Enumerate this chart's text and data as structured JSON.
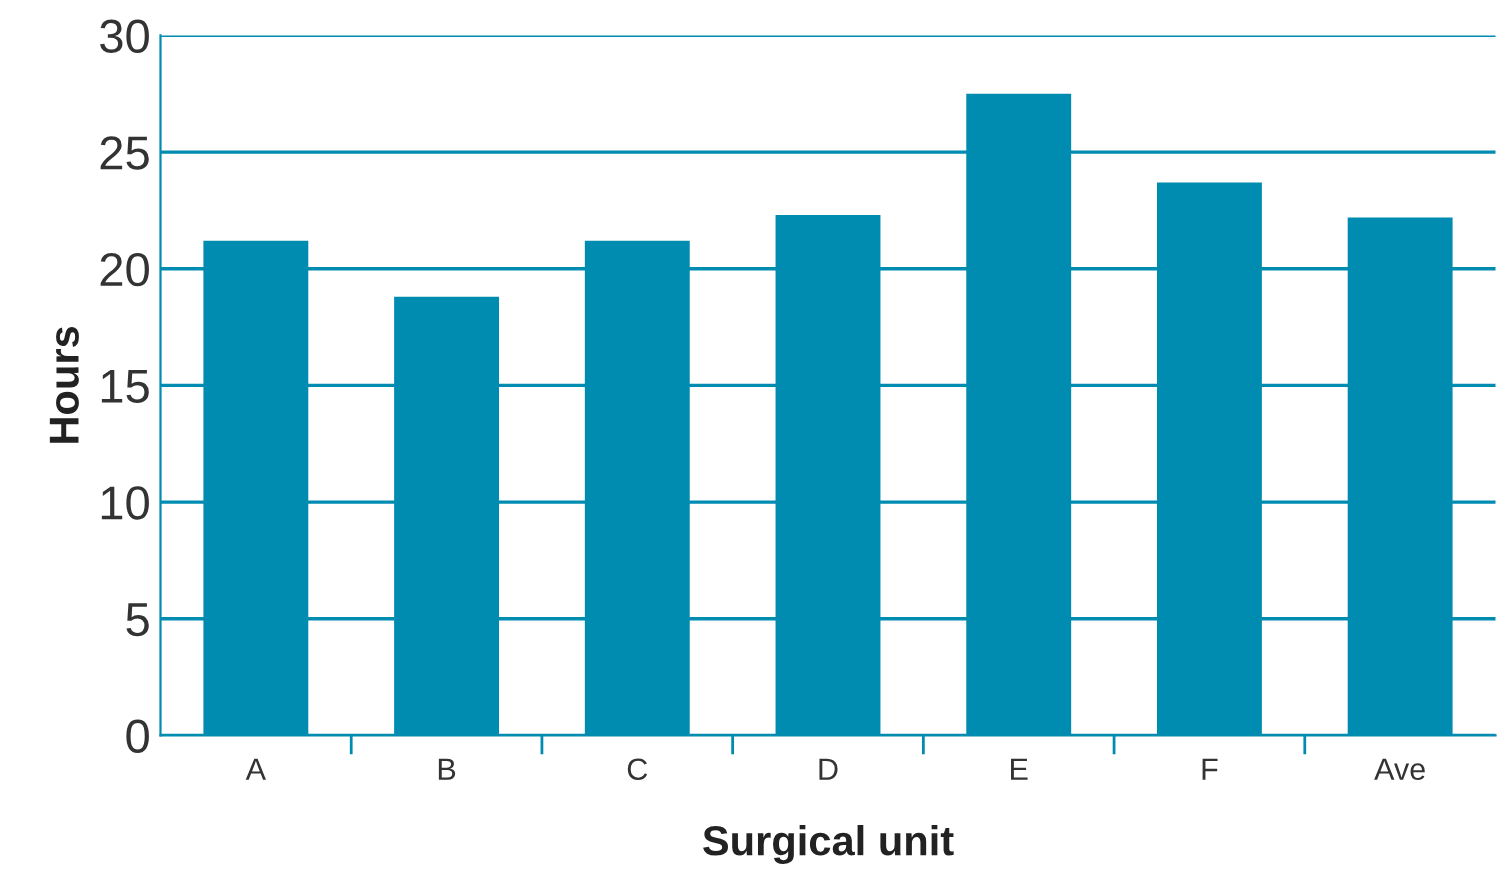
{
  "chart_data": {
    "type": "bar",
    "xlabel": "Surgical unit",
    "ylabel": "Hours",
    "categories": [
      "A",
      "B",
      "C",
      "D",
      "E",
      "F",
      "Ave"
    ],
    "values": [
      21.2,
      18.8,
      21.2,
      22.3,
      27.5,
      23.7,
      22.2
    ],
    "color": "#008bb0",
    "ylim": [
      0,
      30
    ],
    "yticks": [
      0,
      5,
      10,
      15,
      20,
      25,
      30
    ],
    "grid": "y"
  }
}
